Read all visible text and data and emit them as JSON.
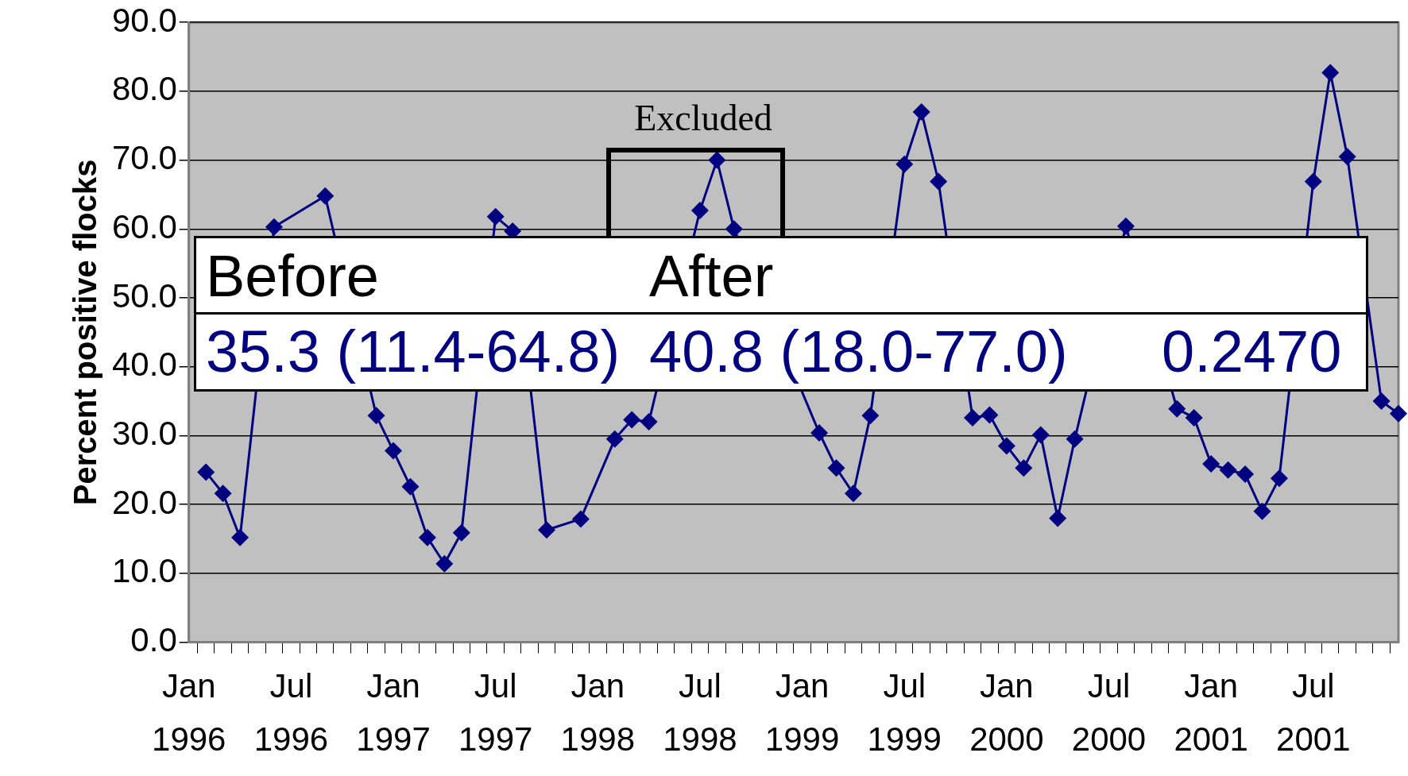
{
  "chart_data": {
    "type": "line",
    "ylabel": "Percent positive flocks",
    "categories": [
      "Jan 1996",
      null,
      null,
      null,
      null,
      null,
      "Jul 1996",
      null,
      null,
      null,
      null,
      null,
      "Jan 1997",
      null,
      null,
      null,
      null,
      null,
      "Jul 1997",
      null,
      null,
      null,
      null,
      null,
      "Jan 1998",
      null,
      null,
      null,
      null,
      null,
      "Jul 1998",
      null,
      null,
      null,
      null,
      null,
      "Jan 1999",
      null,
      null,
      null,
      null,
      null,
      "Jul 1999",
      null,
      null,
      null,
      null,
      null,
      "Jan 2000",
      null,
      null,
      null,
      null,
      null,
      "Jul 2000",
      null,
      null,
      null,
      null,
      null,
      "Jan 2001",
      null,
      null,
      null,
      null,
      null,
      "Jul 2001",
      null,
      null,
      null,
      null,
      null
    ],
    "series": [
      {
        "color": "#000080",
        "values": [
          null,
          24.7,
          21.6,
          15.2,
          null,
          60.3,
          null,
          null,
          64.8,
          null,
          null,
          32.9,
          27.8,
          22.6,
          15.2,
          11.4,
          15.9,
          null,
          61.8,
          59.7,
          null,
          16.3,
          null,
          17.9,
          null,
          29.5,
          32.3,
          32.0,
          null,
          null,
          62.7,
          70.0,
          60.0,
          null,
          null,
          null,
          null,
          30.4,
          25.3,
          21.6,
          32.9,
          null,
          69.4,
          77.0,
          66.9,
          null,
          32.6,
          33.0,
          28.5,
          25.3,
          30.1,
          18.0,
          29.5,
          null,
          null,
          60.4,
          null,
          null,
          33.9,
          32.6,
          25.9,
          25.0,
          24.4,
          19.0,
          23.8,
          null,
          66.9,
          82.7,
          70.5,
          null,
          35.0,
          33.2
        ]
      }
    ],
    "ylim": [
      0,
      90
    ],
    "yticks": [
      {
        "value": 0,
        "label": "0.0"
      },
      {
        "value": 10,
        "label": "10.0"
      },
      {
        "value": 20,
        "label": "20.0"
      },
      {
        "value": 30,
        "label": "30.0"
      },
      {
        "value": 40,
        "label": "40.0"
      },
      {
        "value": 50,
        "label": "50.0"
      },
      {
        "value": 60,
        "label": "60.0"
      },
      {
        "value": 70,
        "label": "70.0"
      },
      {
        "value": 80,
        "label": "80.0"
      },
      {
        "value": 90,
        "label": "90.0"
      }
    ],
    "grid": "y",
    "legend": false,
    "marker": "diamond",
    "line_style": "solid",
    "annotations": [
      "Excluded",
      "Before",
      "After",
      "35.3 (11.4-64.8)",
      "40.8 (18.0-77.0)",
      "0.2470"
    ]
  }
}
